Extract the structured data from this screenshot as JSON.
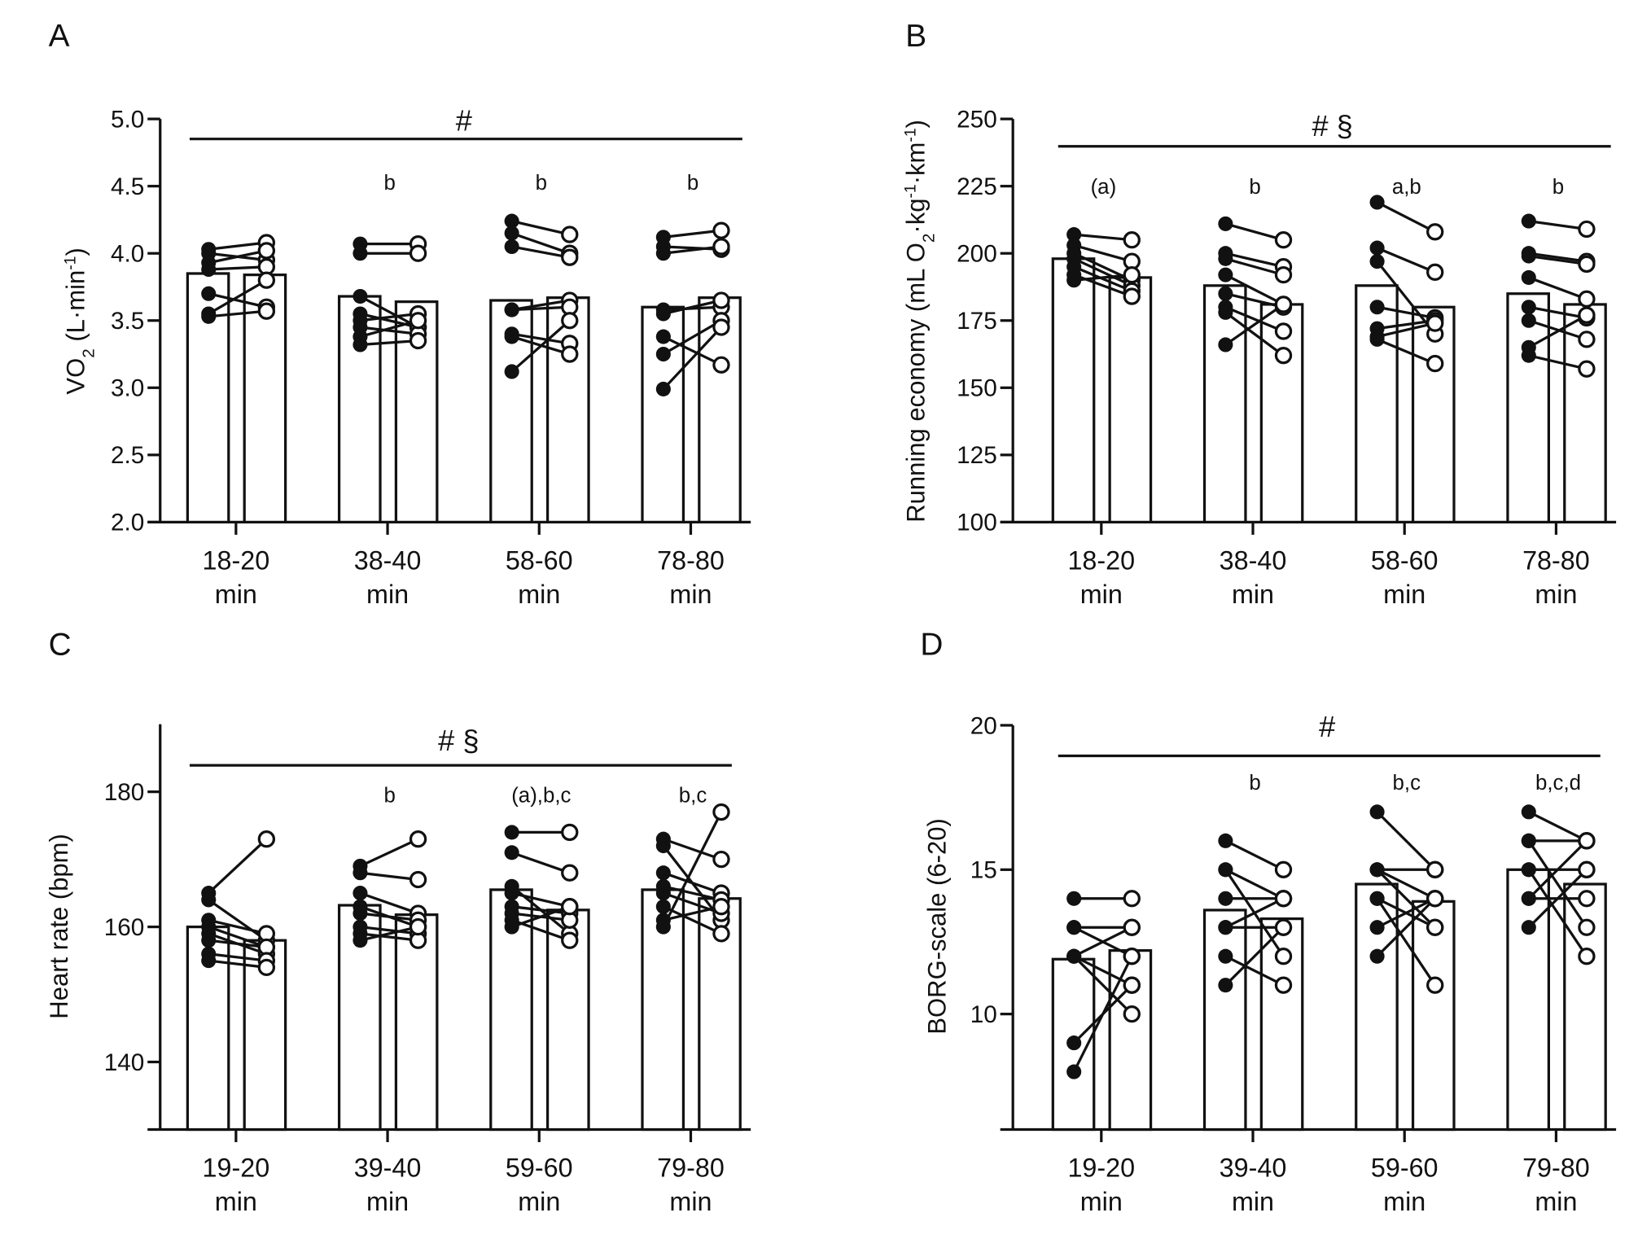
{
  "chart_data": [
    {
      "panel": "A",
      "type": "bar",
      "categories": [
        [
          "18-20",
          "min"
        ],
        [
          "38-40",
          "min"
        ],
        [
          "58-60",
          "min"
        ],
        [
          "78-80",
          "min"
        ]
      ],
      "ylabel": [
        {
          "t": "VO"
        },
        {
          "t": "2",
          "s": "sub"
        },
        {
          "t": "  (L·min"
        },
        {
          "t": "-1",
          "s": "sup"
        },
        {
          "t": ")"
        }
      ],
      "ylim": [
        2.0,
        5.0
      ],
      "yticks": [
        "2.0",
        "2.5",
        "3.0",
        "3.5",
        "4.0",
        "4.5",
        "5.0"
      ],
      "ytick_values": [
        2.0,
        2.5,
        3.0,
        3.5,
        4.0,
        4.5,
        5.0
      ],
      "significance": "#",
      "group_letters": [
        "",
        "b",
        "b",
        "b"
      ],
      "bar_means": [
        [
          3.85,
          3.84
        ],
        [
          3.68,
          3.64
        ],
        [
          3.65,
          3.67
        ],
        [
          3.6,
          3.67
        ]
      ],
      "paired_points": [
        [
          [
            4.03,
            4.08
          ],
          [
            4.0,
            3.95
          ],
          [
            3.93,
            4.02
          ],
          [
            3.88,
            3.9
          ],
          [
            3.7,
            3.6
          ],
          [
            3.55,
            3.8
          ],
          [
            3.53,
            3.57
          ]
        ],
        [
          [
            4.07,
            4.07
          ],
          [
            4.0,
            4.0
          ],
          [
            3.68,
            3.45
          ],
          [
            3.55,
            3.45
          ],
          [
            3.5,
            3.55
          ],
          [
            3.45,
            3.4
          ],
          [
            3.38,
            3.5
          ],
          [
            3.32,
            3.35
          ]
        ],
        [
          [
            4.24,
            4.14
          ],
          [
            4.15,
            4.0
          ],
          [
            4.05,
            3.97
          ],
          [
            3.58,
            3.65
          ],
          [
            3.58,
            3.6
          ],
          [
            3.4,
            3.33
          ],
          [
            3.38,
            3.25
          ],
          [
            3.12,
            3.5
          ]
        ],
        [
          [
            4.12,
            4.17
          ],
          [
            4.05,
            4.03
          ],
          [
            4.0,
            4.05
          ],
          [
            3.58,
            3.6
          ],
          [
            3.55,
            3.65
          ],
          [
            3.38,
            3.17
          ],
          [
            3.25,
            3.5
          ],
          [
            2.99,
            3.45
          ]
        ]
      ]
    },
    {
      "panel": "B",
      "type": "bar",
      "categories": [
        [
          "18-20",
          "min"
        ],
        [
          "38-40",
          "min"
        ],
        [
          "58-60",
          "min"
        ],
        [
          "78-80",
          "min"
        ]
      ],
      "ylabel": [
        {
          "t": "Running economy (mL O"
        },
        {
          "t": "2",
          "s": "sub"
        },
        {
          "t": "·kg"
        },
        {
          "t": "-1",
          "s": "sup"
        },
        {
          "t": "·km"
        },
        {
          "t": "-1",
          "s": "sup"
        },
        {
          "t": ")"
        }
      ],
      "ylim": [
        100,
        250
      ],
      "yticks": [
        "100",
        "125",
        "150",
        "175",
        "200",
        "225",
        "250"
      ],
      "ytick_values": [
        100,
        125,
        150,
        175,
        200,
        225,
        250
      ],
      "significance": "# §",
      "group_letters": [
        "(a)",
        "b",
        "a,b",
        "b"
      ],
      "bar_means": [
        [
          198,
          191
        ],
        [
          188,
          181
        ],
        [
          188,
          180
        ],
        [
          185,
          181
        ]
      ],
      "paired_points": [
        [
          [
            207,
            205
          ],
          [
            203,
            197
          ],
          [
            200,
            190
          ],
          [
            198,
            188
          ],
          [
            195,
            186
          ],
          [
            192,
            184
          ],
          [
            190,
            192
          ]
        ],
        [
          [
            211,
            205
          ],
          [
            200,
            195
          ],
          [
            198,
            192
          ],
          [
            192,
            181
          ],
          [
            185,
            180
          ],
          [
            180,
            171
          ],
          [
            178,
            162
          ],
          [
            166,
            181
          ]
        ],
        [
          [
            219,
            208
          ],
          [
            202,
            193
          ],
          [
            197,
            170
          ],
          [
            180,
            176
          ],
          [
            172,
            175
          ],
          [
            169,
            174
          ],
          [
            168,
            159
          ]
        ],
        [
          [
            212,
            209
          ],
          [
            200,
            197
          ],
          [
            199,
            196
          ],
          [
            191,
            183
          ],
          [
            180,
            176
          ],
          [
            175,
            168
          ],
          [
            165,
            177
          ],
          [
            162,
            157
          ]
        ]
      ]
    },
    {
      "panel": "C",
      "type": "bar",
      "categories": [
        [
          "19-20",
          "min"
        ],
        [
          "39-40",
          "min"
        ],
        [
          "59-60",
          "min"
        ],
        [
          "79-80",
          "min"
        ]
      ],
      "ylabel": [
        {
          "t": "Heart rate (bpm)"
        }
      ],
      "ylim": [
        130,
        190
      ],
      "yticks": [
        "140",
        "160",
        "180"
      ],
      "ytick_values": [
        140,
        160,
        180
      ],
      "significance": "# §",
      "group_letters": [
        "",
        "b",
        "(a),b,c",
        "b,c"
      ],
      "bar_means": [
        [
          160,
          158
        ],
        [
          163.2,
          161.8
        ],
        [
          165.5,
          162.5
        ],
        [
          165.5,
          164.2
        ]
      ],
      "paired_points": [
        [
          [
            165,
            173
          ],
          [
            164,
            158
          ],
          [
            161,
            159
          ],
          [
            160,
            157
          ],
          [
            159,
            156
          ],
          [
            158,
            157
          ],
          [
            156,
            155
          ],
          [
            155,
            154
          ]
        ],
        [
          [
            169,
            173
          ],
          [
            168,
            167
          ],
          [
            165,
            162
          ],
          [
            163,
            160
          ],
          [
            162,
            161
          ],
          [
            160,
            159
          ],
          [
            159,
            158
          ],
          [
            158,
            160
          ]
        ],
        [
          [
            174,
            174
          ],
          [
            171,
            168
          ],
          [
            166,
            159
          ],
          [
            165,
            163
          ],
          [
            163,
            162
          ],
          [
            162,
            161
          ],
          [
            161,
            158
          ],
          [
            160,
            163
          ]
        ],
        [
          [
            173,
            170
          ],
          [
            172,
            161
          ],
          [
            168,
            165
          ],
          [
            166,
            164
          ],
          [
            165,
            162
          ],
          [
            163,
            159
          ],
          [
            161,
            163
          ],
          [
            160,
            177
          ]
        ]
      ]
    },
    {
      "panel": "D",
      "type": "bar",
      "categories": [
        [
          "19-20",
          "min"
        ],
        [
          "39-40",
          "min"
        ],
        [
          "59-60",
          "min"
        ],
        [
          "79-80",
          "min"
        ]
      ],
      "ylabel": [
        {
          "t": "BORG-scale (6-20)"
        }
      ],
      "ylim": [
        6,
        20
      ],
      "yticks": [
        "10",
        "15",
        "20"
      ],
      "ytick_values": [
        10,
        15,
        20
      ],
      "significance": "#",
      "group_letters": [
        "",
        "b",
        "b,c",
        "b,c,d"
      ],
      "bar_means": [
        [
          11.9,
          12.2
        ],
        [
          13.6,
          13.3
        ],
        [
          14.5,
          13.9
        ],
        [
          15.0,
          14.5
        ]
      ],
      "paired_points": [
        [
          [
            14,
            14
          ],
          [
            13,
            13
          ],
          [
            13,
            12
          ],
          [
            12,
            13
          ],
          [
            12,
            11
          ],
          [
            12,
            10
          ],
          [
            9,
            11
          ],
          [
            8,
            12
          ]
        ],
        [
          [
            16,
            15
          ],
          [
            15,
            14
          ],
          [
            15,
            12
          ],
          [
            14,
            14
          ],
          [
            13,
            13
          ],
          [
            12,
            11
          ],
          [
            11,
            13
          ],
          [
            13,
            14
          ]
        ],
        [
          [
            17,
            15
          ],
          [
            15,
            15
          ],
          [
            15,
            14
          ],
          [
            14,
            13
          ],
          [
            14,
            11
          ],
          [
            13,
            14
          ],
          [
            12,
            14
          ],
          [
            15,
            13
          ]
        ],
        [
          [
            17,
            16
          ],
          [
            16,
            16
          ],
          [
            16,
            13
          ],
          [
            15,
            15
          ],
          [
            15,
            12
          ],
          [
            14,
            14
          ],
          [
            14,
            16
          ],
          [
            13,
            15
          ]
        ]
      ]
    }
  ]
}
